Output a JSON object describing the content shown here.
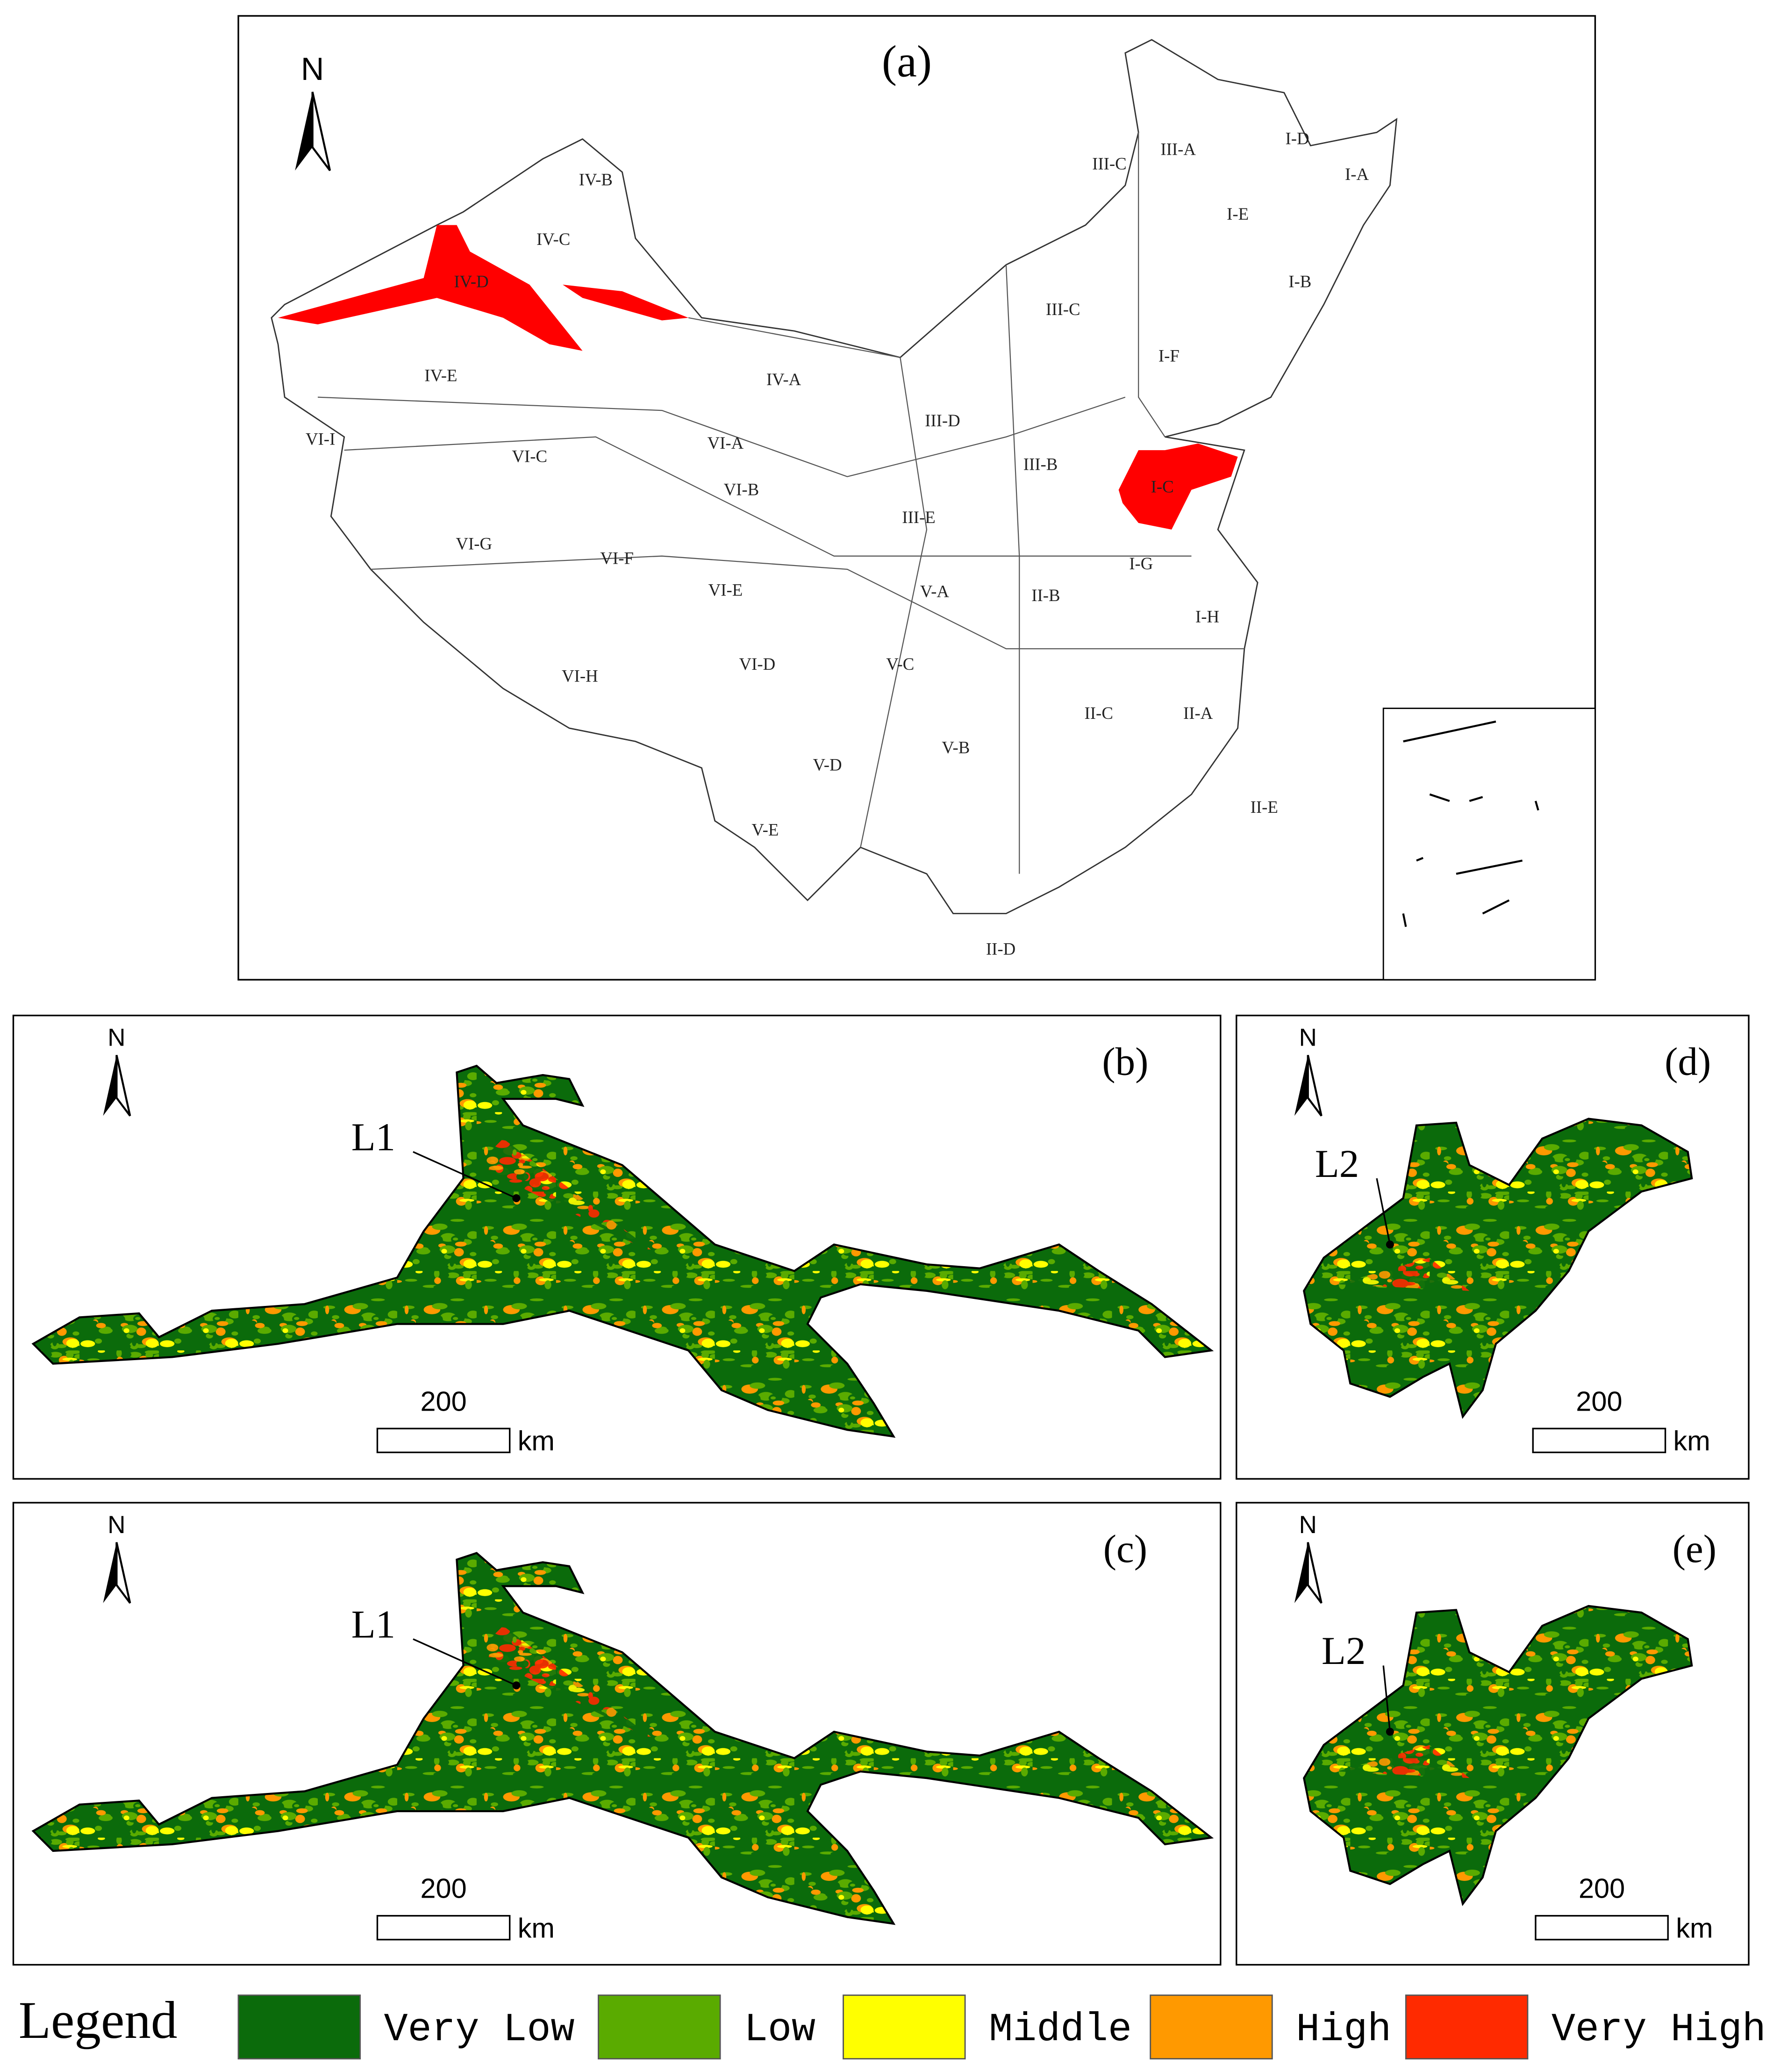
{
  "panels": [
    {
      "label": "(a)",
      "north": "N",
      "regions": [
        "IV-B",
        "IV-C",
        "IV-D",
        "IV-E",
        "IV-A",
        "III-C",
        "III-A",
        "I-D",
        "I-A",
        "I-E",
        "I-B",
        "III-C",
        "I-F",
        "III-D",
        "III-B",
        "I-C",
        "VI-I",
        "VI-C",
        "VI-A",
        "VI-B",
        "III-E",
        "VI-G",
        "VI-F",
        "VI-E",
        "V-A",
        "II-B",
        "I-G",
        "I-H",
        "VI-H",
        "VI-D",
        "V-C",
        "II-C",
        "II-A",
        "V-B",
        "V-D",
        "II-E",
        "V-E",
        "II-D"
      ]
    },
    {
      "label": "(b)",
      "north": "N",
      "marker": "L1",
      "scale_value": "200",
      "scale_unit": "km"
    },
    {
      "label": "(c)",
      "north": "N",
      "marker": "L1",
      "scale_value": "200",
      "scale_unit": "km"
    },
    {
      "label": "(d)",
      "north": "N",
      "marker": "L2",
      "scale_value": "200",
      "scale_unit": "km"
    },
    {
      "label": "(e)",
      "north": "N",
      "marker": "L2",
      "scale_value": "200",
      "scale_unit": "km"
    }
  ],
  "legend": {
    "title": "Legend",
    "items": [
      {
        "label": "Very Low",
        "color": "#0b6b0b"
      },
      {
        "label": "Low",
        "color": "#5aab00"
      },
      {
        "label": "Middle",
        "color": "#ffff00"
      },
      {
        "label": "High",
        "color": "#ff9900"
      },
      {
        "label": "Very High",
        "color": "#ff2a00"
      }
    ]
  },
  "highlight_color": "#ff0000"
}
